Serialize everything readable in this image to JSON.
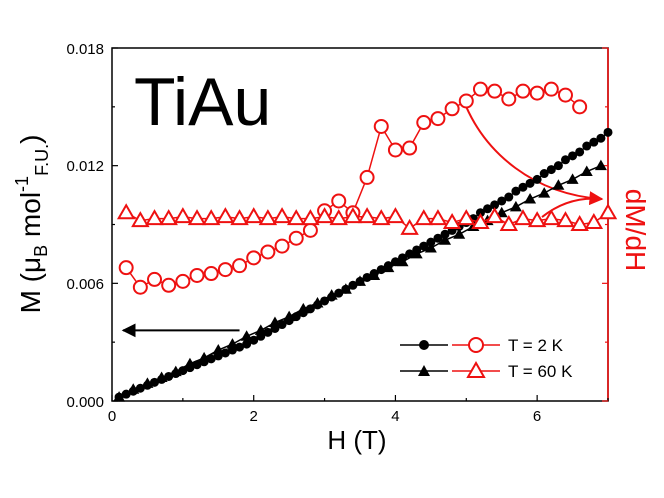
{
  "chart_data": {
    "type": "scatter",
    "title": "TiAu",
    "xlabel": "H (T)",
    "ylabel": "M (μB mol-1F.U.)",
    "ylabel_parts": {
      "main": "M (μ",
      "sub_b": "B",
      "mid": " mol",
      "sup": "-1",
      "sub_fu": "F.U.",
      "end": ")"
    },
    "y2label": "dM/dH",
    "xlim": [
      0,
      7
    ],
    "ylim": [
      0,
      0.018
    ],
    "x_ticks": [
      "0",
      "2",
      "4",
      "6"
    ],
    "y_ticks": [
      "0.000",
      "0.006",
      "0.012",
      "0.018"
    ],
    "legend": {
      "position": "bottom-right",
      "entries": [
        "T = 2 K",
        "T = 60 K"
      ]
    },
    "colors": {
      "black": "#000000",
      "red": "#ee1111"
    },
    "series": [
      {
        "name": "M, T = 2 K",
        "axis": "left",
        "marker": "filled-circle",
        "color": "#000000",
        "x": [
          0.1,
          0.2,
          0.3,
          0.4,
          0.5,
          0.6,
          0.7,
          0.8,
          0.9,
          1.0,
          1.1,
          1.2,
          1.3,
          1.4,
          1.5,
          1.6,
          1.7,
          1.8,
          1.9,
          2.0,
          2.1,
          2.2,
          2.3,
          2.4,
          2.5,
          2.6,
          2.7,
          2.8,
          2.9,
          3.0,
          3.1,
          3.2,
          3.3,
          3.4,
          3.5,
          3.6,
          3.7,
          3.8,
          3.9,
          4.0,
          4.1,
          4.2,
          4.3,
          4.4,
          4.5,
          4.6,
          4.7,
          4.8,
          4.9,
          5.0,
          5.1,
          5.2,
          5.3,
          5.4,
          5.5,
          5.6,
          5.7,
          5.8,
          5.9,
          6.0,
          6.1,
          6.2,
          6.3,
          6.4,
          6.5,
          6.6,
          6.7,
          6.8,
          6.9,
          7.0
        ],
        "y": [
          0.0002,
          0.00035,
          0.0005,
          0.00065,
          0.0008,
          0.00095,
          0.0011,
          0.00125,
          0.0014,
          0.00155,
          0.0017,
          0.00185,
          0.002,
          0.00215,
          0.0023,
          0.00245,
          0.0026,
          0.00275,
          0.0029,
          0.0031,
          0.0033,
          0.0035,
          0.0037,
          0.0039,
          0.0041,
          0.0043,
          0.0045,
          0.0047,
          0.0049,
          0.0051,
          0.0053,
          0.0055,
          0.0057,
          0.0059,
          0.0061,
          0.0063,
          0.0065,
          0.0067,
          0.0069,
          0.0071,
          0.0073,
          0.0075,
          0.0077,
          0.0079,
          0.0081,
          0.0083,
          0.0085,
          0.0087,
          0.0089,
          0.0091,
          0.0093,
          0.0096,
          0.0098,
          0.01,
          0.0102,
          0.0104,
          0.0107,
          0.0109,
          0.0111,
          0.0113,
          0.0116,
          0.0118,
          0.012,
          0.0123,
          0.0125,
          0.0127,
          0.013,
          0.0132,
          0.0134,
          0.0137
        ]
      },
      {
        "name": "M, T = 60 K",
        "axis": "left",
        "marker": "filled-triangle",
        "color": "#000000",
        "x": [
          0.1,
          0.3,
          0.5,
          0.7,
          0.9,
          1.1,
          1.3,
          1.5,
          1.7,
          1.9,
          2.1,
          2.3,
          2.5,
          2.7,
          2.9,
          3.1,
          3.3,
          3.5,
          3.7,
          3.9,
          4.1,
          4.3,
          4.5,
          4.7,
          4.9,
          5.1,
          5.3,
          5.5,
          5.7,
          5.9,
          6.1,
          6.3,
          6.5,
          6.7,
          6.9
        ],
        "y": [
          0.0002,
          0.0006,
          0.0009,
          0.0012,
          0.0015,
          0.0019,
          0.0022,
          0.0026,
          0.0029,
          0.0033,
          0.0036,
          0.004,
          0.0043,
          0.0047,
          0.005,
          0.0054,
          0.0057,
          0.0061,
          0.0064,
          0.0068,
          0.0071,
          0.0075,
          0.0078,
          0.0082,
          0.0085,
          0.0089,
          0.0092,
          0.0096,
          0.0099,
          0.0103,
          0.0106,
          0.011,
          0.0113,
          0.0117,
          0.012
        ]
      },
      {
        "name": "dM/dH, T = 2 K",
        "axis": "right",
        "marker": "open-circle",
        "color": "#ee1111",
        "x": [
          0.2,
          0.4,
          0.6,
          0.8,
          1.0,
          1.2,
          1.4,
          1.6,
          1.8,
          2.0,
          2.2,
          2.4,
          2.6,
          2.8,
          3.0,
          3.2,
          3.4,
          3.6,
          3.8,
          4.0,
          4.2,
          4.4,
          4.6,
          4.8,
          5.0,
          5.2,
          5.4,
          5.6,
          5.8,
          6.0,
          6.2,
          6.4,
          6.6
        ],
        "y": [
          0.0068,
          0.0058,
          0.0062,
          0.0059,
          0.0061,
          0.0064,
          0.0065,
          0.0067,
          0.0069,
          0.0073,
          0.0076,
          0.0079,
          0.0083,
          0.0087,
          0.0097,
          0.0102,
          0.0096,
          0.0114,
          0.014,
          0.0128,
          0.0129,
          0.0142,
          0.0144,
          0.0149,
          0.0153,
          0.0159,
          0.0158,
          0.0154,
          0.0158,
          0.0157,
          0.0159,
          0.0156,
          0.015
        ]
      },
      {
        "name": "dM/dH, T = 60 K",
        "axis": "right",
        "marker": "open-triangle",
        "color": "#ee1111",
        "x": [
          0.2,
          0.4,
          0.6,
          0.8,
          1.0,
          1.2,
          1.4,
          1.6,
          1.8,
          2.0,
          2.2,
          2.4,
          2.6,
          2.8,
          3.0,
          3.2,
          3.4,
          3.6,
          3.8,
          4.0,
          4.2,
          4.4,
          4.6,
          4.8,
          5.0,
          5.2,
          5.4,
          5.6,
          5.8,
          6.0,
          6.2,
          6.4,
          6.6,
          6.8,
          7.0
        ],
        "y": [
          0.0096,
          0.0092,
          0.0093,
          0.0093,
          0.0094,
          0.0093,
          0.0093,
          0.0094,
          0.0093,
          0.0094,
          0.0093,
          0.0094,
          0.0093,
          0.0093,
          0.0094,
          0.0093,
          0.0094,
          0.0094,
          0.0093,
          0.0094,
          0.0088,
          0.0093,
          0.0093,
          0.0091,
          0.0093,
          0.0091,
          0.0094,
          0.009,
          0.0093,
          0.0092,
          0.0093,
          0.0092,
          0.009,
          0.0091,
          0.0096
        ]
      }
    ],
    "annotations": [
      {
        "type": "arrow",
        "color": "#000000",
        "from": [
          1.8,
          0.0036
        ],
        "to": [
          0.1,
          0.0036
        ],
        "meaning": "M belongs to left axis"
      },
      {
        "type": "arrow",
        "color": "#ee1111",
        "from": [
          5.0,
          0.0153
        ],
        "to": [
          7.0,
          0.0104
        ],
        "meaning": "dM/dH belongs to right axis"
      }
    ]
  }
}
